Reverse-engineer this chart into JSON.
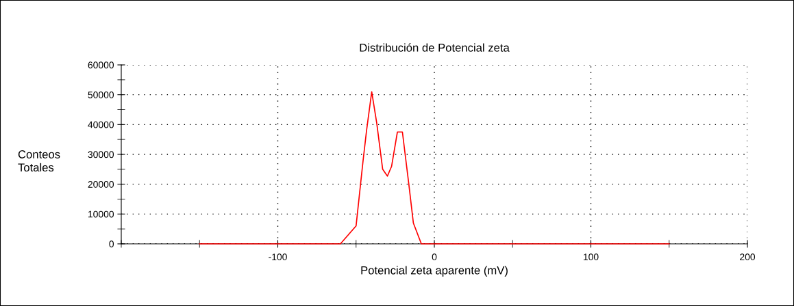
{
  "chart_data": {
    "type": "line",
    "title": "Distribución de Potencial zeta",
    "xlabel": "Potencial zeta aparente (mV)",
    "ylabel": "Conteos\nTotales",
    "series": [
      {
        "color": "#ff0000",
        "x": [
          -150,
          -60,
          -50,
          -45.5,
          -43.3,
          -40,
          -36.8,
          -33,
          -30,
          -27.3,
          -23.6,
          -20.4,
          -16.3,
          -13.4,
          -8.3,
          150
        ],
        "values": [
          0,
          0,
          6000,
          28000,
          38000,
          51000,
          40500,
          25000,
          22700,
          26000,
          37500,
          37500,
          20000,
          7000,
          0,
          0
        ]
      }
    ],
    "xlim": [
      -200,
      200
    ],
    "ylim": [
      0,
      60000
    ],
    "xticks": [
      {
        "value": -200,
        "label": null
      },
      {
        "value": -150,
        "label": null
      },
      -100,
      {
        "value": -50,
        "label": null
      },
      0,
      {
        "value": 50,
        "label": null
      },
      100,
      {
        "value": 150,
        "label": null
      },
      200
    ],
    "yticks": [
      0,
      {
        "value": 5000,
        "label": null
      },
      10000,
      {
        "value": 15000,
        "label": null
      },
      20000,
      {
        "value": 25000,
        "label": null
      },
      30000,
      {
        "value": 35000,
        "label": null
      },
      40000,
      {
        "value": 45000,
        "label": null
      },
      50000,
      {
        "value": 55000,
        "label": null
      },
      60000
    ],
    "grid": true,
    "marker": "none",
    "line_style": "solid"
  }
}
